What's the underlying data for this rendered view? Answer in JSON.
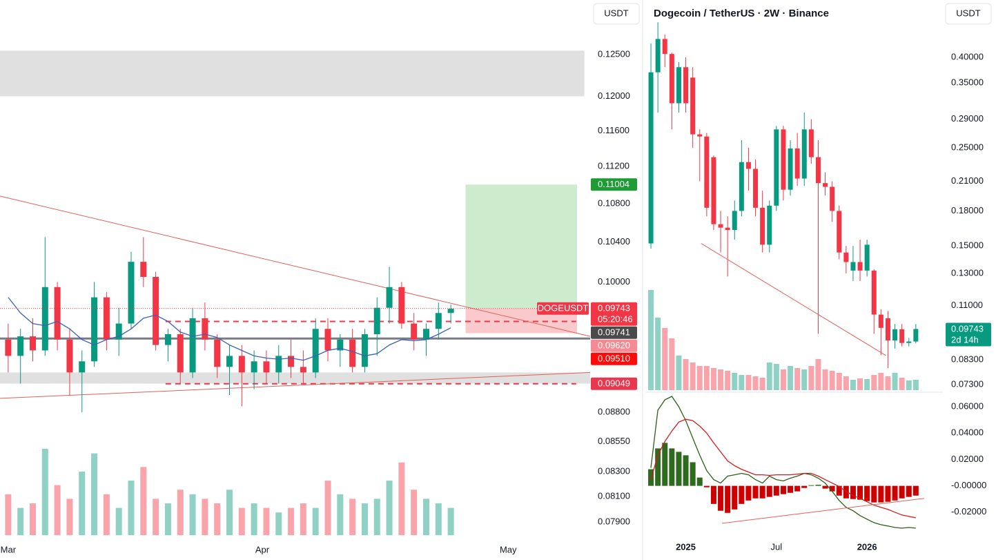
{
  "chart_data": [
    {
      "type": "candlestick",
      "axis_unit": "USDT",
      "log_scale": true,
      "xlim": [
        -1,
        71
      ],
      "xticks": [
        {
          "value": 0,
          "label": "Mar"
        },
        {
          "value": 31,
          "label": "Apr"
        },
        {
          "value": 61,
          "label": "May"
        }
      ],
      "ylim": [
        0.0772,
        0.1319
      ],
      "yticks": [
        {
          "value": 0.125,
          "label": "0.12500"
        },
        {
          "value": 0.12,
          "label": "0.12000"
        },
        {
          "value": 0.116,
          "label": "0.11600"
        },
        {
          "value": 0.112,
          "label": "0.11200"
        },
        {
          "value": 0.108,
          "label": "0.10800"
        },
        {
          "value": 0.104,
          "label": "0.10400"
        },
        {
          "value": 0.1,
          "label": "0.10000"
        },
        {
          "value": 0.088,
          "label": "0.08800"
        },
        {
          "value": 0.0855,
          "label": "0.08550"
        },
        {
          "value": 0.083,
          "label": "0.08300"
        },
        {
          "value": 0.081,
          "label": "0.08100"
        },
        {
          "value": 0.079,
          "label": "0.07900"
        }
      ],
      "up_color": "#089981",
      "down_color": "#f23645",
      "x": [
        0,
        1.5,
        3,
        4.5,
        6,
        7.5,
        9,
        10.5,
        12,
        13.5,
        15,
        16.5,
        18,
        19.5,
        21,
        22.5,
        24,
        25.5,
        27,
        28.5,
        30,
        31.5,
        33,
        34.5,
        36,
        37.5,
        39,
        40.5,
        42,
        43.5,
        45,
        46.5,
        48,
        49.5,
        51,
        52.5,
        54
      ],
      "open": [
        0.0945,
        0.093,
        0.0948,
        0.0935,
        0.0995,
        0.0945,
        0.0915,
        0.0925,
        0.0985,
        0.0945,
        0.096,
        0.102,
        0.1005,
        0.094,
        0.095,
        0.0915,
        0.0965,
        0.0945,
        0.092,
        0.093,
        0.0915,
        0.0925,
        0.0915,
        0.093,
        0.092,
        0.0915,
        0.0955,
        0.0935,
        0.0945,
        0.092,
        0.095,
        0.0975,
        0.0995,
        0.096,
        0.0945,
        0.0955,
        0.097
      ],
      "high": [
        0.096,
        0.0955,
        0.0965,
        0.1045,
        0.1,
        0.0955,
        0.0935,
        0.1,
        0.099,
        0.0975,
        0.103,
        0.1045,
        0.101,
        0.0955,
        0.0955,
        0.0975,
        0.098,
        0.095,
        0.094,
        0.094,
        0.0935,
        0.0935,
        0.094,
        0.0945,
        0.0935,
        0.0965,
        0.0965,
        0.095,
        0.0955,
        0.0955,
        0.0985,
        0.1015,
        0.1,
        0.097,
        0.096,
        0.098,
        0.0978
      ],
      "low": [
        0.0915,
        0.0905,
        0.0925,
        0.093,
        0.0935,
        0.0895,
        0.088,
        0.092,
        0.0935,
        0.093,
        0.0955,
        0.0995,
        0.0935,
        0.0925,
        0.0905,
        0.091,
        0.0935,
        0.091,
        0.0895,
        0.0885,
        0.09,
        0.0905,
        0.0905,
        0.091,
        0.0905,
        0.091,
        0.0925,
        0.092,
        0.0915,
        0.0915,
        0.093,
        0.096,
        0.0955,
        0.0935,
        0.093,
        0.0945,
        0.096
      ],
      "close": [
        0.093,
        0.0948,
        0.0935,
        0.0995,
        0.0945,
        0.0915,
        0.0925,
        0.0985,
        0.0945,
        0.096,
        0.102,
        0.1005,
        0.094,
        0.095,
        0.0915,
        0.0965,
        0.0945,
        0.092,
        0.093,
        0.0915,
        0.0925,
        0.0915,
        0.093,
        0.092,
        0.0915,
        0.0955,
        0.0935,
        0.0945,
        0.092,
        0.095,
        0.0975,
        0.0995,
        0.096,
        0.0945,
        0.0955,
        0.097,
        0.0974
      ],
      "volume": [
        45,
        30,
        35,
        95,
        55,
        40,
        70,
        90,
        45,
        30,
        60,
        75,
        40,
        35,
        50,
        45,
        40,
        35,
        50,
        30,
        35,
        30,
        25,
        30,
        35,
        30,
        60,
        45,
        40,
        35,
        40,
        60,
        80,
        50,
        40,
        35,
        30
      ],
      "ma": {
        "color": "#3e5fb8",
        "values": [
          0.0985,
          0.097,
          0.096,
          0.0958,
          0.0962,
          0.0955,
          0.0945,
          0.094,
          0.0945,
          0.0948,
          0.0955,
          0.0965,
          0.0968,
          0.0962,
          0.0952,
          0.0948,
          0.095,
          0.0947,
          0.094,
          0.0935,
          0.093,
          0.0928,
          0.0927,
          0.0928,
          0.0926,
          0.093,
          0.0935,
          0.0937,
          0.0934,
          0.093,
          0.0932,
          0.094,
          0.0945,
          0.0944,
          0.0945,
          0.095,
          0.0956
        ]
      },
      "trendlines": [
        {
          "color": "#e0605a",
          "x": [
            -1,
            71
          ],
          "y": [
            0.1088,
            0.0948
          ]
        },
        {
          "color": "#e0605a",
          "x": [
            -1,
            71
          ],
          "y": [
            0.0892,
            0.0915
          ]
        }
      ],
      "zones": [
        {
          "color": "#e0e0e0",
          "x": [
            -1,
            70.3
          ],
          "y": [
            0.12,
            0.1255
          ]
        },
        {
          "color": "#e0e0e0",
          "x": [
            -1,
            71
          ],
          "y": [
            0.0905,
            0.0915
          ]
        }
      ],
      "levels": [
        {
          "value": 0.0962,
          "x": [
            19.2,
            69.3
          ],
          "color": "#e8384f",
          "style": "dashed"
        },
        {
          "value": 0.09049,
          "x": [
            19.2,
            69.3
          ],
          "color": "#e8384f",
          "style": "dashed"
        },
        {
          "value": 0.0946,
          "x": [
            -1,
            71
          ],
          "color": "#787b86",
          "style": "solid"
        }
      ],
      "position": {
        "x": [
          55.8,
          69.4
        ],
        "entry": 0.09743,
        "target": 0.11004,
        "stop": 0.0951,
        "target_color": "#cdeccd",
        "stop_color": "#f9c9cc"
      },
      "price_tags": [
        {
          "value": 0.11004,
          "label": "0.11004",
          "color": "#1e9b35"
        },
        {
          "value": 0.09743,
          "label": "0.09743",
          "sub": "05:20:46",
          "symbol": "DOGEUSDT",
          "color": "#f23645"
        },
        {
          "value": 0.09741,
          "label": "0.09741",
          "color": "#4a4a4a"
        },
        {
          "value": 0.0962,
          "label": "0.09620",
          "color": "#f58a92"
        },
        {
          "value": 0.0951,
          "label": "0.09510",
          "color": "#ff0a0a"
        },
        {
          "value": 0.09049,
          "label": "0.09049",
          "color": "#e8384f"
        }
      ]
    },
    {
      "type": "candlestick",
      "title": "Dogecoin / TetherUS · 2W · Binance",
      "axis_unit": "USDT",
      "log_scale": true,
      "categories": [
        null,
        null,
        null,
        null,
        null,
        "2025",
        null,
        null,
        null,
        null,
        null,
        null,
        null,
        null,
        null,
        null,
        null,
        null,
        "Jul",
        null,
        null,
        null,
        null,
        null,
        null,
        null,
        null,
        null,
        null,
        null,
        null,
        "2026",
        null,
        null,
        null,
        null,
        null,
        null,
        null
      ],
      "ylim": [
        0.0709,
        0.4838
      ],
      "yticks": [
        {
          "value": 0.4,
          "label": "0.40000"
        },
        {
          "value": 0.35,
          "label": "0.35000"
        },
        {
          "value": 0.29,
          "label": "0.29000"
        },
        {
          "value": 0.25,
          "label": "0.25000"
        },
        {
          "value": 0.21,
          "label": "0.21000"
        },
        {
          "value": 0.18,
          "label": "0.18000"
        },
        {
          "value": 0.15,
          "label": "0.15000"
        },
        {
          "value": 0.13,
          "label": "0.13000"
        },
        {
          "value": 0.11,
          "label": "0.11000"
        },
        {
          "value": 0.083,
          "label": "0.08300"
        },
        {
          "value": 0.073,
          "label": "0.07300"
        }
      ],
      "up_color": "#089981",
      "down_color": "#f23645",
      "open": [
        0.152,
        0.37,
        0.44,
        0.407,
        0.315,
        0.38,
        0.36,
        0.268,
        0.265,
        0.238,
        0.168,
        0.165,
        0.163,
        0.18,
        0.232,
        0.224,
        0.183,
        0.151,
        0.185,
        0.275,
        0.201,
        0.249,
        0.213,
        0.275,
        0.238,
        0.208,
        0.204,
        0.18,
        0.145,
        0.132,
        0.138,
        0.132,
        0.132,
        0.105,
        0.103,
        0.0918,
        0.0973,
        0.0906,
        0.0913
      ],
      "high": [
        0.43,
        0.48,
        0.45,
        0.41,
        0.39,
        0.4,
        0.38,
        0.275,
        0.27,
        0.24,
        0.18,
        0.175,
        0.19,
        0.26,
        0.25,
        0.235,
        0.2,
        0.19,
        0.28,
        0.28,
        0.26,
        0.27,
        0.3,
        0.29,
        0.26,
        0.22,
        0.21,
        0.185,
        0.15,
        0.15,
        0.155,
        0.155,
        0.133,
        0.108,
        0.107,
        0.1,
        0.1,
        0.093,
        0.1
      ],
      "low": [
        0.148,
        0.3,
        0.38,
        0.275,
        0.3,
        0.3,
        0.25,
        0.21,
        0.175,
        0.163,
        0.145,
        0.128,
        0.155,
        0.175,
        0.2,
        0.175,
        0.145,
        0.145,
        0.18,
        0.19,
        0.195,
        0.205,
        0.205,
        0.23,
        0.095,
        0.195,
        0.17,
        0.14,
        0.13,
        0.125,
        0.125,
        0.128,
        0.095,
        0.085,
        0.0795,
        0.088,
        0.089,
        0.089,
        0.0905
      ],
      "close": [
        0.37,
        0.44,
        0.407,
        0.315,
        0.38,
        0.315,
        0.268,
        0.265,
        0.183,
        0.168,
        0.165,
        0.163,
        0.18,
        0.232,
        0.224,
        0.183,
        0.151,
        0.185,
        0.275,
        0.201,
        0.249,
        0.213,
        0.275,
        0.238,
        0.208,
        0.204,
        0.18,
        0.145,
        0.138,
        0.138,
        0.132,
        0.151,
        0.105,
        0.098,
        0.0918,
        0.0973,
        0.0906,
        0.0913,
        0.09743
      ],
      "volume": [
        145,
        105,
        90,
        75,
        50,
        45,
        40,
        35,
        35,
        32,
        30,
        28,
        25,
        22,
        22,
        20,
        18,
        40,
        38,
        30,
        35,
        32,
        30,
        35,
        45,
        30,
        28,
        25,
        20,
        15,
        17,
        16,
        22,
        25,
        20,
        25,
        18,
        14,
        15
      ],
      "trendlines": [
        {
          "color": "#e0605a",
          "x": [
            7.2,
            33.7
          ],
          "y": [
            0.152,
            0.0849
          ]
        }
      ],
      "price_tag": {
        "value": 0.09743,
        "label": "0.09743",
        "sub": "2d 14h",
        "color": "#089981"
      },
      "macd": {
        "ylim": [
          -0.0505,
          0.07
        ],
        "yticks": [
          {
            "value": 0.06,
            "label": "0.06000"
          },
          {
            "value": 0.04,
            "label": "0.04000"
          },
          {
            "value": 0.02,
            "label": "0.02000"
          },
          {
            "value": 0,
            "label": "-0.00000"
          },
          {
            "value": -0.02,
            "label": "-0.02000"
          }
        ],
        "histogram": {
          "up_color": "#2e6b1f",
          "down_color": "#cc0000",
          "values": [
            0.0126,
            0.0284,
            0.0326,
            0.0284,
            0.0258,
            0.0232,
            0.0179,
            0.0063,
            -0.0011,
            -0.0137,
            -0.0189,
            -0.0205,
            -0.0179,
            -0.0137,
            -0.0111,
            -0.0095,
            -0.0095,
            -0.0084,
            -0.0074,
            -0.0063,
            -0.0053,
            -0.0042,
            -0.0016,
            0.0005,
            0.0008,
            -0.0021,
            -0.0042,
            -0.0074,
            -0.0095,
            -0.01,
            -0.0105,
            -0.0116,
            -0.0126,
            -0.0126,
            -0.0121,
            -0.0111,
            -0.0095,
            -0.0084,
            -0.0074
          ]
        },
        "macd": {
          "color": "#2d5e16",
          "values": [
            0.0137,
            0.0574,
            0.0653,
            0.0679,
            0.06,
            0.0495,
            0.0363,
            0.0232,
            0.0116,
            0.0047,
            0.0021,
            0.0074,
            0.0084,
            0.0095,
            0.0084,
            0.0047,
            0.0021,
            0.0074,
            0.0047,
            0.0037,
            0.0058,
            0.0074,
            0.0095,
            0.0084,
            0.0058,
            0.0021,
            -0.0042,
            -0.0111,
            -0.0163,
            -0.0189,
            -0.0226,
            -0.0253,
            -0.0279,
            -0.0295,
            -0.0305,
            -0.0316,
            -0.0321,
            -0.0316,
            -0.0321
          ]
        },
        "signal": {
          "color": "#d7191c",
          "values": [
            0.0047,
            0.0232,
            0.0337,
            0.0416,
            0.0484,
            0.0505,
            0.0495,
            0.0453,
            0.04,
            0.0326,
            0.0258,
            0.0189,
            0.0153,
            0.0126,
            0.0105,
            0.0084,
            0.0084,
            0.0079,
            0.0084,
            0.0084,
            0.0084,
            0.0089,
            0.0095,
            0.0095,
            0.0074,
            0.0047,
            0.0021,
            -0.0005,
            -0.0042,
            -0.0074,
            -0.0095,
            -0.0121,
            -0.0147,
            -0.0163,
            -0.0179,
            -0.02,
            -0.0221,
            -0.0232,
            -0.0242
          ]
        },
        "trendlines": [
          {
            "color": "#e0605a",
            "x": [
              10.2,
              39.2
            ],
            "y": [
              -0.0284,
              -0.0095
            ]
          }
        ]
      }
    }
  ]
}
